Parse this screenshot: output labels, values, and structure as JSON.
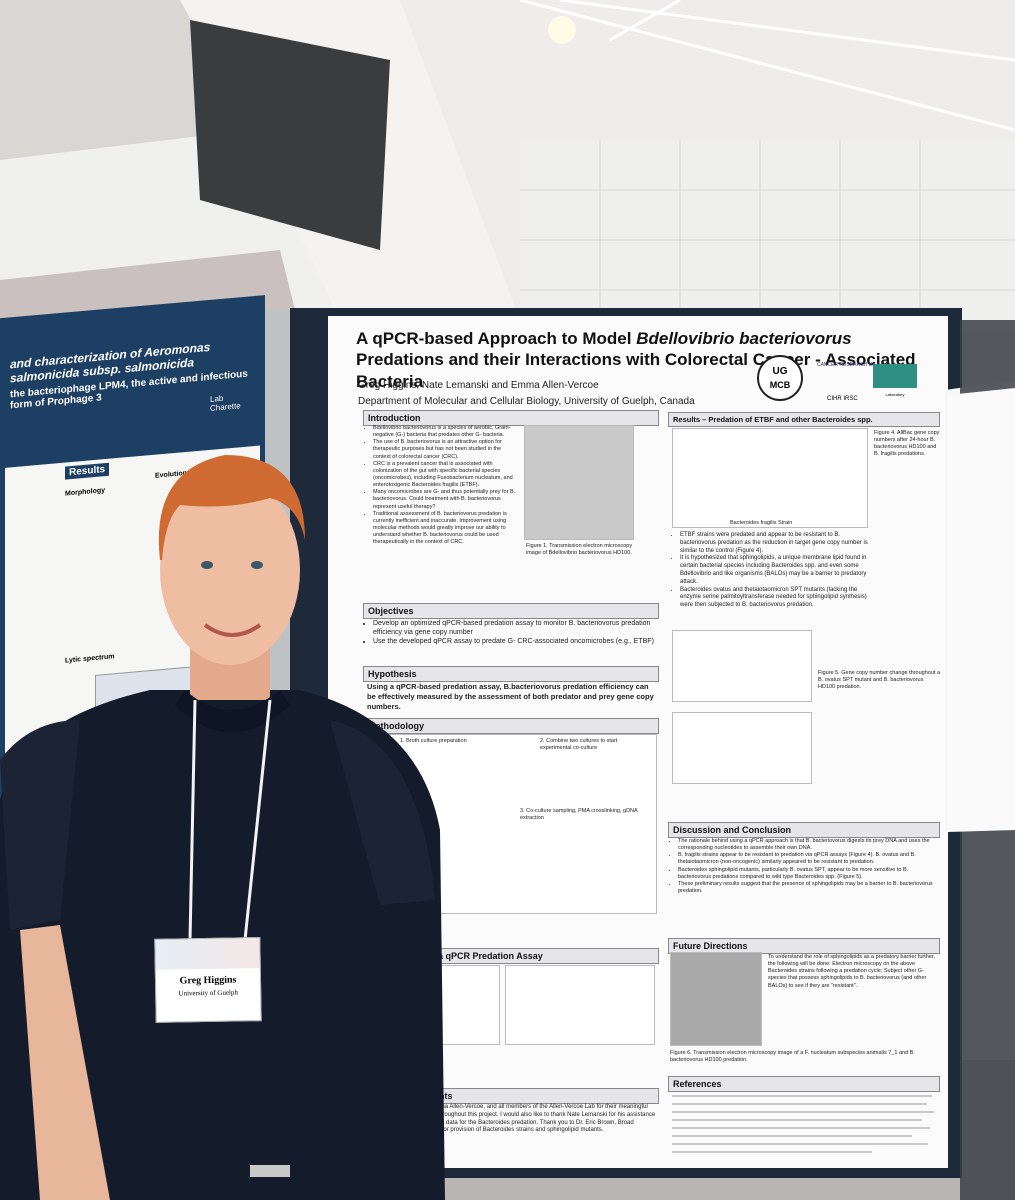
{
  "poster": {
    "title_parts": [
      "A qPCR-based Approach to Model ",
      "Bdellovibrio bacteriovorus",
      " Predations and their Interactions with Colorectal Cancer - Associated Bacteria"
    ],
    "authors": "Greg Higgins, Nate Lemanski and Emma Allen-Vercoe",
    "affiliation": "Department of Molecular and Cellular Biology, University of Guelph, Canada",
    "logos": [
      "UG",
      "MCB",
      "CANCER RESEARCH UK",
      "CIHR IRSC",
      "Laboratory"
    ],
    "introduction": {
      "heading": "Introduction",
      "bullets": [
        "Bdellovibrio bacteriovorus is a species of aerobic, Gram-negative (G-) bacteria that predates other G- bacteria.",
        "The use of B. bacteriovorus is an attractive option for therapeutic purposes but has not been studied in the context of colorectal cancer (CRC).",
        "CRC is a prevalent cancer that is associated with colonization of the gut with specific bacterial species (oncomicrobes), including Fusobacterium nucleatum, and enterotoxigenic Bacteroides fragilis (ETBF).",
        "Many oncomicrobes are G- and thus potentially prey for B. bacteriovorus. Could treatment with B. bacteriovorus represent useful therapy?",
        "Traditional assessment of B. bacteriovorus predation is currently inefficient and inaccurate. Improvement using molecular methods would greatly improve our ability to understand whether B. bacteriovorus could be used therapeutically in the context of CRC."
      ],
      "figure_caption": "Figure 1. Transmission electron microscopy image of Bdellovibrio bacteriovorus HD100."
    },
    "objectives": {
      "heading": "Objectives",
      "bullets": [
        "Develop an optimized qPCR-based predation assay to monitor B. bacteriovorus predation efficiency via gene copy number",
        "Use the developed qPCR assay to predate G- CRC-associated oncomicrobes (e.g., ETBF)"
      ]
    },
    "hypothesis": {
      "heading": "Hypothesis",
      "text": "Using a qPCR-based predation assay, B.bacteriovorus predation efficiency can be effectively measured by the assessment of both predator and prey gene copy numbers."
    },
    "methodology": {
      "heading": "Methodology",
      "steps": [
        "1. Broth culture preparation",
        "2. Combine two cultures to start experimental co-culture",
        "3. Co-culture sampling, PMA crosslinking, gDNA extraction"
      ]
    },
    "development": {
      "heading": "Development of a qPCR Predation Assay"
    },
    "acknowledgements": {
      "heading": "Acknowledgements",
      "text": "I would like to thank Dr. Emma Allen-Vercoe, and all members of the Allen-Vercoe Lab for their meaningful discussions and guidance throughout this project. I would also like to thank Nate Lemanski for his assistance in the lab and providing initial data for the Bacteroides predation. Thank you to Dr. Eric Brown, Broad Institute, Cambridge, Mass. for provision of Bacteroides strains and sphingolipid mutants."
    },
    "results": {
      "heading": "Results – Predation of ETBF and other Bacteroides spp.",
      "axis_label": "Bacteroides fragilis Strain",
      "bullets": [
        "ETBF strains were predated and appear to be resistant to B. bacteriovorus predation as the reduction in target gene copy number is similar to the control (Figure 4).",
        "It is hypothesized that sphingolipids, a unique membrane lipid found in certain bacterial species including Bacteroides spp. and even some Bdellovibrio and like organisms (BALOs) may be a barrier to predatory attack.",
        "Bacteroides ovatus and thetaiotaomicron SPT mutants (lacking the enzyme serine palmitoyltransferase needed for sphingolipid synthesis) were then subjected to B. bacteriovorus predation."
      ],
      "fig4_caption": "Figure 4. AllBac gene copy numbers after 24-hour B. bacteriovorus HD100 and B. fragilis predations.",
      "fig5_caption": "Figure 5. Gene copy number change throughout a B. ovatus SPT mutant and B. bacteriovorus HD100 predation."
    },
    "discussion": {
      "heading": "Discussion and Conclusion",
      "bullets": [
        "The rationale behind using a qPCR approach is that B. bacteriovorus digests its prey DNA and uses the corresponding nucleotides to assemble their own DNA.",
        "B. fragilis strains appear to be resistant to predation via qPCR assays (Figure 4). B. ovatus and B. thetaiotaomicron (non-oncogenic) similarly appeared to be resistant to predation.",
        "Bacteroides sphingolipid mutants, particularly B. ovatus SPT, appear to be more sensitive to B. bacteriovorus predations compared to wild type Bacteroides spp. (Figure 5).",
        "These preliminary results suggest that the presence of sphingolipids may be a barrier to B. bacteriovorus predation."
      ]
    },
    "future": {
      "heading": "Future Directions",
      "text": "To understand the role of sphingolipids as a predatory barrier further, the following will be done: Electron microscopy on the above Bacteroides strains following a predation cycle; Subject other G- species that possess sphingolipids to B. bacteriovorus (and other BALOs) to see if they are \"resistant\".",
      "caption": "Figure 6. Transmission electron microscopy image of a F. nucleatum subspecies animalis 7_1 and B. bacteriovorus HD100 predation."
    },
    "references": {
      "heading": "References"
    }
  },
  "left_poster": {
    "title": "and characterization of Aeromonas salmonicida subsp. salmonicida",
    "subtitle": "the bacteriophage LPM4, the active and infectious form of Prophage 3",
    "sections": [
      "Results",
      "Morphology",
      "Evolutionary relat",
      "Lytic spectrum"
    ],
    "logo": "Lab Charette"
  },
  "badge": {
    "name": "Greg Higgins",
    "org": "University of Guelph"
  }
}
